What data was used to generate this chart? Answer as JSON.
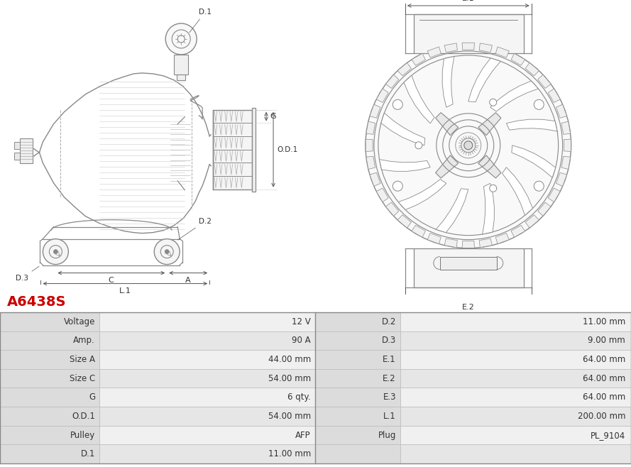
{
  "title": "A6438S",
  "title_color": "#cc0000",
  "bg_color": "#ffffff",
  "rows": [
    [
      "Voltage",
      "12 V",
      "D.2",
      "11.00 mm"
    ],
    [
      "Amp.",
      "90 A",
      "D.3",
      "9.00 mm"
    ],
    [
      "Size A",
      "44.00 mm",
      "E.1",
      "64.00 mm"
    ],
    [
      "Size C",
      "54.00 mm",
      "E.2",
      "64.00 mm"
    ],
    [
      "G",
      "6 qty.",
      "E.3",
      "64.00 mm"
    ],
    [
      "O.D.1",
      "54.00 mm",
      "L.1",
      "200.00 mm"
    ],
    [
      "Pulley",
      "AFP",
      "Plug",
      "PL_9104"
    ],
    [
      "D.1",
      "11.00 mm",
      "",
      ""
    ]
  ],
  "lc": "#888888",
  "lc_dark": "#555555",
  "dim_color": "#555555"
}
